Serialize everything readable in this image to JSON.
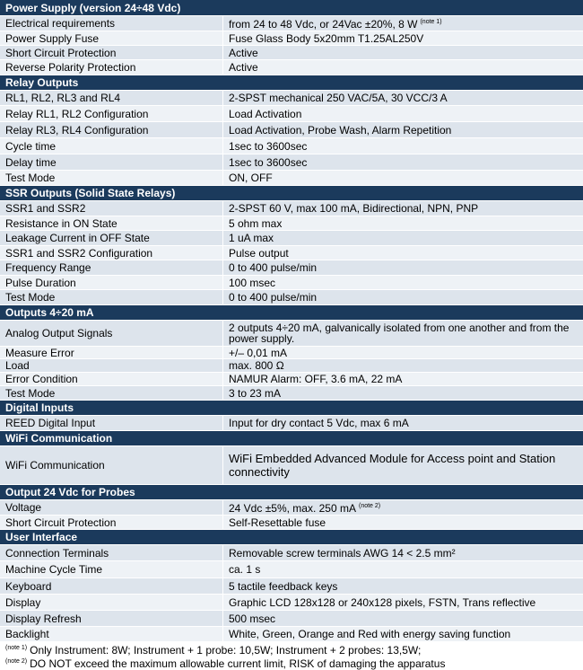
{
  "sections": [
    {
      "title": "Power Supply (version 24÷48 Vdc)",
      "rows": [
        {
          "label": "Electrical requirements",
          "value": "from 24 to 48 Vdc, or 24Vac ±20%, 8 W",
          "note": "(note 1)"
        },
        {
          "label": "Power Supply Fuse",
          "value": "Fuse Glass Body 5x20mm T1.25AL250V"
        },
        {
          "label": "Short Circuit Protection",
          "value": "Active"
        },
        {
          "label": "Reverse Polarity Protection",
          "value": "Active"
        }
      ]
    },
    {
      "title": "Relay Outputs",
      "rows": [
        {
          "label": "RL1, RL2, RL3 and RL4",
          "value": "2-SPST mechanical 250 VAC/5A, 30 VCC/3 A"
        },
        {
          "label": "Relay RL1, RL2 Configuration",
          "value": "Load Activation"
        },
        {
          "label": "Relay RL3, RL4 Configuration",
          "value": "Load Activation, Probe Wash, Alarm Repetition"
        },
        {
          "label": "Cycle time",
          "value": "1sec to 3600sec"
        },
        {
          "label": "Delay time",
          "value": "1sec to 3600sec"
        },
        {
          "label": "Test Mode",
          "value": "ON, OFF"
        }
      ]
    },
    {
      "title": "SSR Outputs (Solid State Relays)",
      "rows": [
        {
          "label": "SSR1 and SSR2",
          "value": "2-SPST 60 V, max 100 mA, Bidirectional, NPN, PNP"
        },
        {
          "label": "Resistance in ON State",
          "value": "5 ohm max"
        },
        {
          "label": "Leakage Current in OFF State",
          "value": "1 uA max"
        },
        {
          "label": "SSR1 and SSR2 Configuration",
          "value": "Pulse output"
        },
        {
          "label": "Frequency Range",
          "value": "0 to 400 pulse/min"
        },
        {
          "label": "Pulse Duration",
          "value": "100 msec"
        },
        {
          "label": "Test Mode",
          "value": "0 to 400 pulse/min"
        }
      ]
    },
    {
      "title": "Outputs 4÷20 mA",
      "rows": [
        {
          "label": "Analog Output Signals",
          "value": "2 outputs 4÷20 mA, galvanically isolated from one another and from the power supply."
        },
        {
          "label": "Measure Error",
          "value": "+/– 0,01 mA"
        },
        {
          "label": "Load",
          "value": "max. 800 Ω"
        },
        {
          "label": "Error Condition",
          "value": "NAMUR Alarm: OFF, 3.6 mA, 22 mA"
        },
        {
          "label": "Test Mode",
          "value": "3 to 23 mA"
        }
      ]
    },
    {
      "title": "Digital Inputs",
      "rows": [
        {
          "label": "REED Digital Input",
          "value": "Input for dry contact 5 Vdc, max 6 mA"
        }
      ]
    },
    {
      "title": "WiFi Communication",
      "rows": [
        {
          "label": "WiFi Communication",
          "value": "WiFi Embedded Advanced Module for Access point and Station connectivity"
        }
      ]
    },
    {
      "title": "Output 24 Vdc for Probes",
      "rows": [
        {
          "label": "Voltage",
          "value": "24 Vdc ±5%, max. 250 mA",
          "note": "(note 2)"
        },
        {
          "label": "Short Circuit Protection",
          "value": "Self-Resettable fuse"
        }
      ]
    },
    {
      "title": "User Interface",
      "rows": [
        {
          "label": "Connection Terminals",
          "value": "Removable screw terminals AWG 14 < 2.5 mm²"
        },
        {
          "label": "Machine Cycle Time",
          "value": "ca. 1 s"
        },
        {
          "label": "Keyboard",
          "value": "5 tactile feedback keys"
        },
        {
          "label": "Display",
          "value": "Graphic LCD 128x128 or 240x128 pixels, FSTN, Trans reflective"
        },
        {
          "label": "Display Refresh",
          "value": "500 msec"
        },
        {
          "label": "Backlight",
          "value": "White, Green, Orange and Red with energy saving function"
        }
      ]
    }
  ],
  "notes": [
    {
      "marker": "(note 1)",
      "text": "Only Instrument: 8W; Instrument + 1 probe: 10,5W; Instrument + 2 probes: 13,5W;"
    },
    {
      "marker": "(note 2)",
      "text": "DO NOT exceed the maximum allowable current limit, RISK of damaging the apparatus"
    }
  ]
}
